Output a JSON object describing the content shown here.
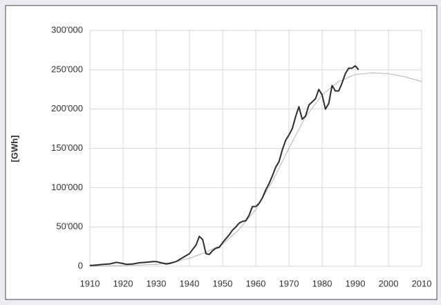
{
  "chart_data": {
    "type": "line",
    "y_label": "[GWh]",
    "xlim": [
      1910,
      2010
    ],
    "ylim": [
      0,
      300000
    ],
    "xticks": [
      1910,
      1920,
      1930,
      1940,
      1950,
      1960,
      1970,
      1980,
      1990,
      2000,
      2010
    ],
    "yticks": [
      0,
      {
        "value": 50000,
        "label": "50'000"
      },
      {
        "value": 100000,
        "label": "100'000"
      },
      {
        "value": 150000,
        "label": "150'000"
      },
      {
        "value": 200000,
        "label": "200'000"
      },
      {
        "value": 250000,
        "label": "250'000"
      },
      {
        "value": 300000,
        "label": "300'000"
      }
    ],
    "grid": true,
    "series": [
      {
        "color": "#2b2b2b",
        "width": 2,
        "x": [
          1910,
          1912,
          1914,
          1916,
          1918,
          1920,
          1921,
          1923,
          1925,
          1927,
          1929,
          1930,
          1932,
          1933,
          1934,
          1936,
          1938,
          1940,
          1942,
          1943,
          1944,
          1945,
          1946,
          1947,
          1948,
          1949,
          1950,
          1951,
          1952,
          1953,
          1954,
          1955,
          1956,
          1957,
          1958,
          1959,
          1960,
          1961,
          1962,
          1963,
          1964,
          1965,
          1966,
          1967,
          1968,
          1969,
          1970,
          1971,
          1972,
          1973,
          1974,
          1975,
          1976,
          1977,
          1978,
          1979,
          1980,
          1981,
          1982,
          1983,
          1984,
          1985,
          1986,
          1987,
          1988,
          1989,
          1990,
          1991
        ],
        "values": [
          1000,
          1500,
          2500,
          3000,
          5000,
          3500,
          2500,
          3000,
          4500,
          5000,
          6000,
          6000,
          4000,
          3000,
          3500,
          6000,
          11000,
          16000,
          27000,
          38000,
          34000,
          16000,
          15000,
          20000,
          23000,
          24000,
          30000,
          35000,
          40000,
          46000,
          50000,
          55000,
          57000,
          58000,
          65000,
          76000,
          76000,
          80000,
          87000,
          97000,
          105000,
          115000,
          126000,
          133000,
          148000,
          160000,
          167000,
          175000,
          190000,
          203000,
          187000,
          191000,
          205000,
          209000,
          213000,
          225000,
          218000,
          200000,
          207000,
          230000,
          223000,
          223000,
          233000,
          245000,
          252000,
          252000,
          255000,
          250000
        ]
      },
      {
        "color": "#b5b5b5",
        "width": 1,
        "x": [
          1910,
          1915,
          1920,
          1925,
          1930,
          1935,
          1940,
          1945,
          1950,
          1955,
          1960,
          1965,
          1970,
          1975,
          1980,
          1985,
          1990,
          1995,
          2000,
          2005,
          2010
        ],
        "values": [
          0,
          500,
          1000,
          1500,
          2500,
          5000,
          10000,
          18000,
          28000,
          47000,
          72000,
          108000,
          150000,
          190000,
          218000,
          235000,
          244000,
          246000,
          245000,
          241000,
          235000
        ]
      }
    ]
  }
}
